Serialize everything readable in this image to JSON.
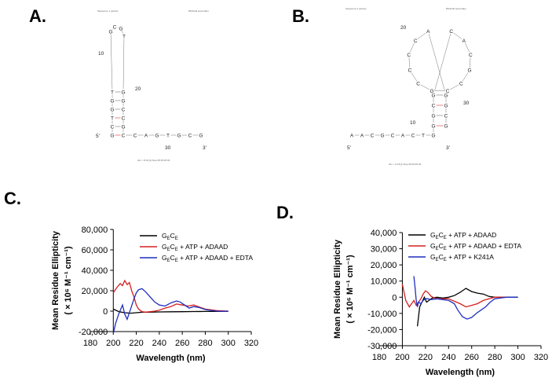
{
  "panels": {
    "a": {
      "label": "A.",
      "header_left": "Sequence 1 (probe)",
      "header_right": "RNAfold secondary",
      "sequence": "GCTGGTGCGTGGCCGCCAGTGCGTT",
      "footer": "dG = -8.34 [1] Sep 28 05:45:32",
      "numbers": {
        "n10": "10",
        "n20": "20",
        "n30": "30",
        "five": "5'",
        "three": "3'"
      }
    },
    "b": {
      "label": "B.",
      "header_left": "Sequence 2 (probe)",
      "header_right": "RNAfold secondary",
      "sequence": "AACGCACTGGGCGCACGCCGCCCCAGGCG",
      "footer": "dG = -6.18 [1] Sep 28 05:45:32",
      "numbers": {
        "n10": "10",
        "n20": "20",
        "n30": "30",
        "five": "5'",
        "three": "3'"
      }
    },
    "c": {
      "label": "C."
    },
    "d": {
      "label": "D."
    }
  },
  "chart_data": [
    {
      "id": "C",
      "type": "line",
      "title": "",
      "xlabel": "Wavelength (nm)",
      "ylabel_line1": "Mean Residue Ellipticity",
      "ylabel_line2": "( × 10⁶ M⁻¹ cm⁻¹)",
      "xlim": [
        180,
        320
      ],
      "ylim": [
        -20000,
        80000
      ],
      "x_ticks": [
        180,
        200,
        220,
        240,
        260,
        280,
        300,
        320
      ],
      "y_ticks": [
        -20000,
        0,
        20000,
        40000,
        60000,
        80000
      ],
      "x_tick_labels": [
        "180",
        "200",
        "220",
        "240",
        "260",
        "280",
        "300",
        "320"
      ],
      "y_tick_labels": [
        "-20,000",
        "0",
        "20,000",
        "40,000",
        "60,000",
        "80,000"
      ],
      "legend_position": "top-right",
      "series": [
        {
          "name": "GECE",
          "name_parts": [
            "G",
            "E",
            "C",
            "E",
            ""
          ],
          "color": "#000000",
          "x": [
            200,
            205,
            210,
            215,
            220,
            225,
            230,
            240,
            250,
            260,
            270,
            280,
            290,
            300
          ],
          "y": [
            2000,
            -500,
            -1500,
            -2000,
            -1500,
            -1000,
            -1000,
            -800,
            -600,
            -500,
            -400,
            -300,
            -200,
            0
          ]
        },
        {
          "name": "GECE + ATP + ADAAD",
          "name_parts": [
            "G",
            "E",
            "C",
            "E",
            " + ATP + ADAAD"
          ],
          "color": "#d62020",
          "x": [
            200,
            203,
            206,
            208,
            210,
            212,
            214,
            216,
            218,
            220,
            222,
            225,
            228,
            232,
            236,
            240,
            245,
            250,
            255,
            260,
            265,
            270,
            275,
            280,
            290,
            300
          ],
          "y": [
            18000,
            23000,
            27000,
            25000,
            30000,
            26000,
            28000,
            20000,
            14000,
            6000,
            2000,
            -500,
            -1000,
            -500,
            0,
            1000,
            3000,
            4500,
            7000,
            6000,
            5000,
            6000,
            4000,
            2000,
            500,
            0
          ]
        },
        {
          "name": "GECE + ATP + ADAAD + EDTA",
          "name_parts": [
            "G",
            "E",
            "C",
            "E",
            " + ATP + ADAAD + EDTA"
          ],
          "color": "#1f2fbf",
          "x": [
            200,
            202,
            205,
            208,
            210,
            212,
            215,
            218,
            220,
            222,
            225,
            228,
            232,
            236,
            240,
            245,
            250,
            255,
            258,
            262,
            266,
            270,
            275,
            280,
            290,
            300
          ],
          "y": [
            -22000,
            -12000,
            -2000,
            6000,
            -3000,
            -8000,
            2000,
            12000,
            18000,
            21000,
            22000,
            19000,
            14000,
            9000,
            6000,
            5000,
            8000,
            10000,
            9000,
            6000,
            3000,
            4500,
            3500,
            1500,
            0,
            -200
          ]
        }
      ]
    },
    {
      "id": "D",
      "type": "line",
      "title": "",
      "xlabel": "Wavelength (nm)",
      "ylabel_line1": "Mean Residue Ellipticity",
      "ylabel_line2": "( × 10⁶ M⁻¹ cm⁻¹)",
      "xlim": [
        180,
        320
      ],
      "ylim": [
        -30000,
        40000
      ],
      "x_ticks": [
        180,
        200,
        220,
        240,
        260,
        280,
        300,
        320
      ],
      "y_ticks": [
        -30000,
        -20000,
        -10000,
        0,
        10000,
        20000,
        30000,
        40000
      ],
      "x_tick_labels": [
        "180",
        "200",
        "220",
        "240",
        "260",
        "280",
        "300",
        "320"
      ],
      "y_tick_labels": [
        "-30,000",
        "-20,000",
        "-10,000",
        "0",
        "10,000",
        "20,000",
        "30,000",
        "40,000"
      ],
      "legend_position": "top-right",
      "series": [
        {
          "name": "GECE + ATP + ADAAD",
          "name_parts": [
            "G",
            "E",
            "C",
            "E",
            " + ATP + ADAAD"
          ],
          "color": "#000000",
          "x": [
            213,
            215,
            217,
            219,
            221,
            223,
            226,
            230,
            235,
            240,
            245,
            250,
            255,
            260,
            265,
            270,
            275,
            280,
            290,
            300
          ],
          "y": [
            -18000,
            -6000,
            -3000,
            0,
            -3000,
            -2000,
            -500,
            0,
            -500,
            0,
            1000,
            3000,
            5500,
            3500,
            2500,
            2000,
            500,
            0,
            0,
            0
          ]
        },
        {
          "name": "GECE + ATP + ADAAD + EDTA",
          "name_parts": [
            "G",
            "E",
            "C",
            "E",
            " + ATP + ADAAD + EDTA"
          ],
          "color": "#d62020",
          "x": [
            200,
            203,
            206,
            208,
            210,
            212,
            214,
            216,
            218,
            220,
            222,
            225,
            228,
            232,
            236,
            240,
            245,
            250,
            255,
            260,
            265,
            270,
            275,
            280,
            290
          ],
          "y": [
            8000,
            -2000,
            -6000,
            -4000,
            -2000,
            -5000,
            -3000,
            -1000,
            2000,
            4000,
            3000,
            500,
            -500,
            -1000,
            -1000,
            -1000,
            -2500,
            -4000,
            -6000,
            -5000,
            -4000,
            -2000,
            -1000,
            0,
            0
          ]
        },
        {
          "name": "GECE + ATP + K241A",
          "name_parts": [
            "G",
            "E",
            "C",
            "E",
            " + ATP + K241A"
          ],
          "color": "#1f2fbf",
          "x": [
            210,
            211,
            212,
            213,
            214,
            216,
            218,
            220,
            222,
            225,
            230,
            235,
            240,
            245,
            248,
            252,
            256,
            260,
            264,
            268,
            272,
            276,
            280,
            290,
            300
          ],
          "y": [
            13000,
            6000,
            -2000,
            -6000,
            -3000,
            -4000,
            -2000,
            -1000,
            -1000,
            -1500,
            -1000,
            -1500,
            -2000,
            -4000,
            -8000,
            -12000,
            -13500,
            -12500,
            -10000,
            -8000,
            -6000,
            -3000,
            -1000,
            0,
            0
          ]
        }
      ]
    }
  ]
}
